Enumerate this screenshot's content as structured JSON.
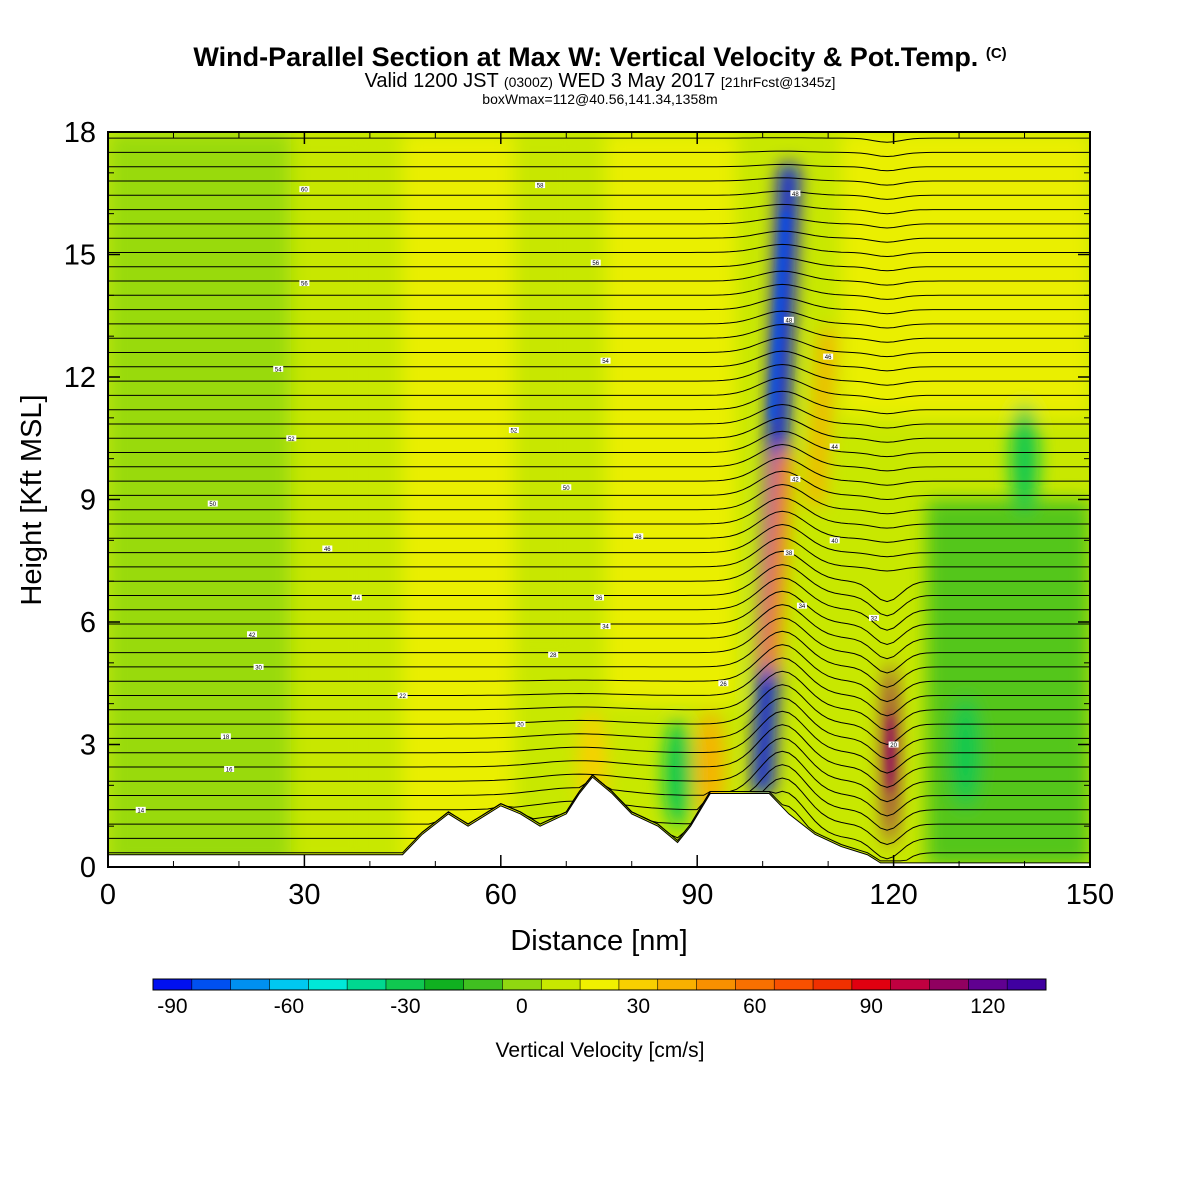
{
  "title": {
    "main": "Wind-Parallel Section at Max W: Vertical Velocity & Pot.Temp.",
    "copyright": "(C)",
    "valid_prefix": "Valid 1200 JST",
    "valid_utc": "(0300Z)",
    "valid_date": "WED 3 May 2017",
    "forecast": "[21hrFcst@1345z]",
    "box_info": "boxWmax=112@40.56,141.34,1358m"
  },
  "chart_data": {
    "type": "heatmap",
    "xlabel": "Distance [nm]",
    "ylabel": "Height [Kft MSL]",
    "xlim": [
      0,
      150
    ],
    "ylim": [
      0,
      18
    ],
    "x_ticks": [
      "0",
      "30",
      "60",
      "90",
      "120",
      "150"
    ],
    "y_ticks": [
      "0",
      "3",
      "6",
      "9",
      "12",
      "15",
      "18"
    ],
    "colorbar": {
      "label": "Vertical Velocity [cm/s]",
      "min": -95,
      "max": 135,
      "step": 10,
      "tick_labels": [
        "-90",
        "-60",
        "-30",
        "0",
        "30",
        "60",
        "90",
        "120"
      ],
      "colors": [
        "#0010f0",
        "#0050f0",
        "#0090f0",
        "#00c8f0",
        "#00e8d8",
        "#00d890",
        "#10c850",
        "#10b020",
        "#40c020",
        "#90d810",
        "#c8e800",
        "#f0f000",
        "#f8d000",
        "#f8b000",
        "#f89000",
        "#f87000",
        "#f85000",
        "#f03000",
        "#e00010",
        "#c00040",
        "#900060",
        "#600090",
        "#4000a0"
      ]
    },
    "features": [
      {
        "name": "downdraft-band",
        "w": -90,
        "x0": 100,
        "y0": 2,
        "x1": 104,
        "y1": 17
      },
      {
        "name": "updraft-band",
        "w": 60,
        "x0": 101,
        "y0": 5,
        "x1": 103,
        "y1": 10
      },
      {
        "name": "updraft-band",
        "w": 40,
        "x0": 108,
        "y0": 9,
        "x1": 110,
        "y1": 13
      },
      {
        "name": "updraft-core",
        "w": 110,
        "x": 119.5,
        "y": 3,
        "z0": 0.5,
        "z1": 5
      },
      {
        "name": "updraft-cell",
        "w": 40,
        "x": 92,
        "y": 2.5
      },
      {
        "name": "updraft-cell",
        "w": 30,
        "x": 74,
        "y": 2.5
      },
      {
        "name": "downdraft-cell",
        "w": -30,
        "x": 87,
        "y": 2.3
      },
      {
        "name": "downdraft-cell",
        "w": -30,
        "x": 131,
        "y": 2.8
      },
      {
        "name": "downdraft-cell",
        "w": -30,
        "x": 140,
        "y": 10
      }
    ],
    "terrain_nm_kft": [
      [
        0,
        0.3
      ],
      [
        45,
        0.3
      ],
      [
        48,
        0.8
      ],
      [
        52,
        1.3
      ],
      [
        55,
        1.0
      ],
      [
        58,
        1.3
      ],
      [
        60,
        1.5
      ],
      [
        63,
        1.3
      ],
      [
        66,
        1.0
      ],
      [
        70,
        1.3
      ],
      [
        72,
        1.8
      ],
      [
        74,
        2.2
      ],
      [
        77,
        1.8
      ],
      [
        80,
        1.3
      ],
      [
        84,
        1.0
      ],
      [
        87,
        0.6
      ],
      [
        89,
        1.0
      ],
      [
        92,
        1.8
      ],
      [
        101,
        1.8
      ],
      [
        104,
        1.3
      ],
      [
        108,
        0.8
      ],
      [
        112,
        0.5
      ],
      [
        116,
        0.3
      ],
      [
        118,
        0.1
      ],
      [
        150,
        0.1
      ]
    ],
    "isentropes": {
      "theta_min_c": 12,
      "theta_max_c": 62,
      "interval_c": 1,
      "labels": [
        {
          "text": "60",
          "x": 30,
          "y": 16.6
        },
        {
          "text": "58",
          "x": 66,
          "y": 16.7
        },
        {
          "text": "56",
          "x": 30,
          "y": 14.3
        },
        {
          "text": "56",
          "x": 74.5,
          "y": 14.8
        },
        {
          "text": "54",
          "x": 26,
          "y": 12.2
        },
        {
          "text": "54",
          "x": 76,
          "y": 12.4
        },
        {
          "text": "52",
          "x": 28,
          "y": 10.5
        },
        {
          "text": "52",
          "x": 62,
          "y": 10.7
        },
        {
          "text": "50",
          "x": 16,
          "y": 8.9
        },
        {
          "text": "50",
          "x": 70,
          "y": 9.3
        },
        {
          "text": "48",
          "x": 81,
          "y": 8.1
        },
        {
          "text": "48",
          "x": 105,
          "y": 16.5
        },
        {
          "text": "48",
          "x": 104,
          "y": 13.4
        },
        {
          "text": "46",
          "x": 33.5,
          "y": 7.8
        },
        {
          "text": "46",
          "x": 110,
          "y": 12.5
        },
        {
          "text": "44",
          "x": 38,
          "y": 6.6
        },
        {
          "text": "44",
          "x": 111,
          "y": 10.3
        },
        {
          "text": "42",
          "x": 22,
          "y": 5.7
        },
        {
          "text": "42",
          "x": 105,
          "y": 9.5
        },
        {
          "text": "40",
          "x": 111,
          "y": 8.0
        },
        {
          "text": "38",
          "x": 104,
          "y": 7.7
        },
        {
          "text": "36",
          "x": 75,
          "y": 6.6
        },
        {
          "text": "34",
          "x": 76,
          "y": 5.9
        },
        {
          "text": "34",
          "x": 106,
          "y": 6.4
        },
        {
          "text": "32",
          "x": 117,
          "y": 6.1
        },
        {
          "text": "30",
          "x": 23,
          "y": 4.9
        },
        {
          "text": "28",
          "x": 68,
          "y": 5.2
        },
        {
          "text": "26",
          "x": 94,
          "y": 4.5
        },
        {
          "text": "22",
          "x": 45,
          "y": 4.2
        },
        {
          "text": "20",
          "x": 63,
          "y": 3.5
        },
        {
          "text": "20",
          "x": 120,
          "y": 3.0
        },
        {
          "text": "18",
          "x": 18,
          "y": 3.2
        },
        {
          "text": "16",
          "x": 18.5,
          "y": 2.4
        },
        {
          "text": "14",
          "x": 5,
          "y": 1.4
        }
      ]
    }
  }
}
